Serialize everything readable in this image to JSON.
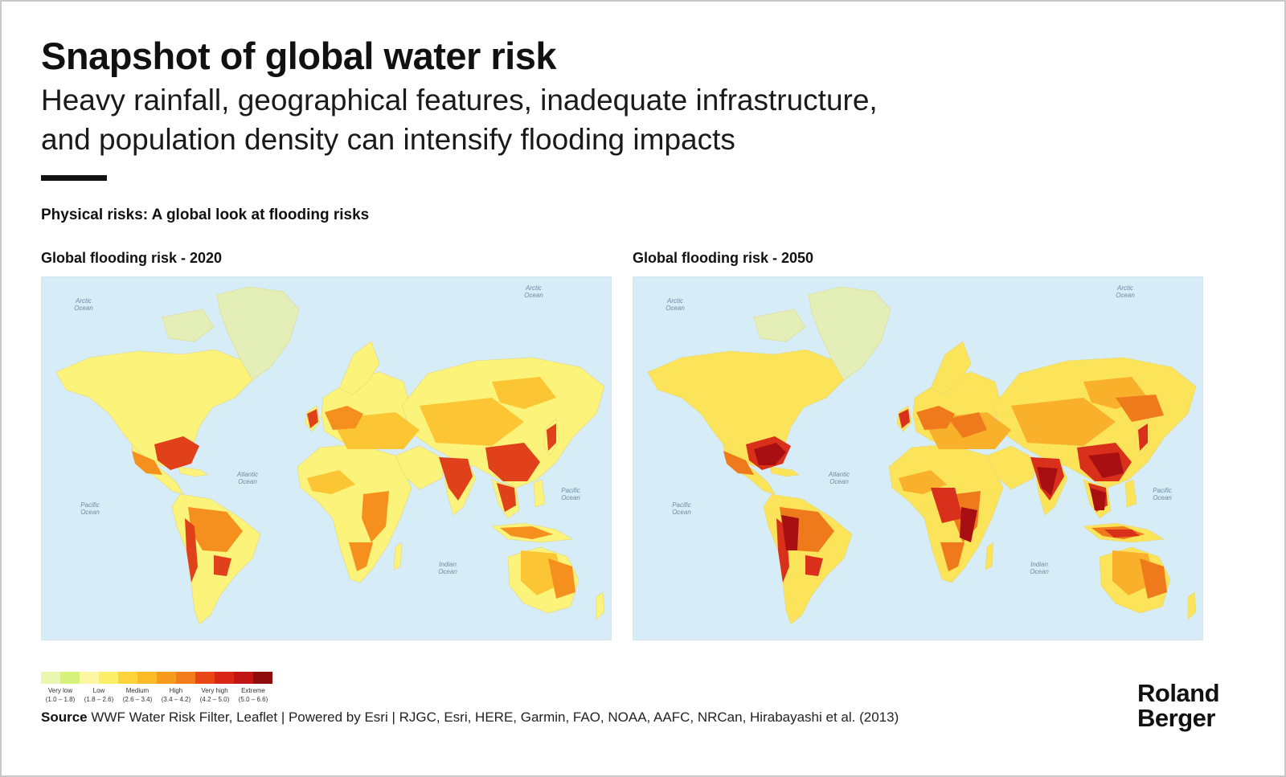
{
  "header": {
    "title": "Snapshot of global water risk",
    "subtitle_line1": "Heavy rainfall, geographical features, inadequate infrastructure,",
    "subtitle_line2": "and population density can intensify flooding impacts"
  },
  "section_heading": "Physical risks: A global look at flooding risks",
  "maps": [
    {
      "title": "Global flooding risk - 2020",
      "ocean_labels": {
        "arctic": "Arctic Ocean",
        "atlantic": "Atlantic Ocean",
        "pacific": "Pacific Ocean",
        "indian": "Indian Ocean"
      },
      "colors": {
        "ocean": "#d6ecf7",
        "greenland": "#e4efb8",
        "land_low": "#fbf37a",
        "land_medium": "#fcc534",
        "land_high": "#f5901e",
        "land_very_high": "#e0401a",
        "land_extreme": "#b31515"
      }
    },
    {
      "title": "Global flooding risk - 2050",
      "ocean_labels": {
        "arctic": "Arctic Ocean",
        "atlantic": "Atlantic Ocean",
        "pacific": "Pacific Ocean",
        "indian": "Indian Ocean"
      },
      "colors": {
        "ocean": "#d6ecf7",
        "greenland": "#e4efb8",
        "land_low": "#fbe35a",
        "land_medium": "#f9b02a",
        "land_high": "#ef7a1c",
        "land_very_high": "#d8301a",
        "land_extreme": "#a80f12"
      }
    }
  ],
  "legend": {
    "swatches": [
      "#e9f7b1",
      "#d8f07c",
      "#fdf7a4",
      "#fbef6a",
      "#fcd33a",
      "#fbbb26",
      "#f79b1d",
      "#f37c1a",
      "#e94515",
      "#d82514",
      "#c11414",
      "#8e0c0c"
    ],
    "classes": [
      {
        "label": "Very low",
        "range": "(1.0 – 1.8)"
      },
      {
        "label": "Low",
        "range": "(1.8 – 2.6)"
      },
      {
        "label": "Medium",
        "range": "(2.6 – 3.4)"
      },
      {
        "label": "High",
        "range": "(3.4 – 4.2)"
      },
      {
        "label": "Very high",
        "range": "(4.2 – 5.0)"
      },
      {
        "label": "Extreme",
        "range": "(5.0 – 6.6)"
      }
    ]
  },
  "source": {
    "label": "Source",
    "text": "WWF Water Risk Filter, Leaflet | Powered by Esri | RJGC, Esri, HERE, Garmin, FAO, NOAA, AAFC, NRCan, Hirabayashi et al. (2013)"
  },
  "logo": {
    "line1": "Roland",
    "line2": "Berger"
  }
}
